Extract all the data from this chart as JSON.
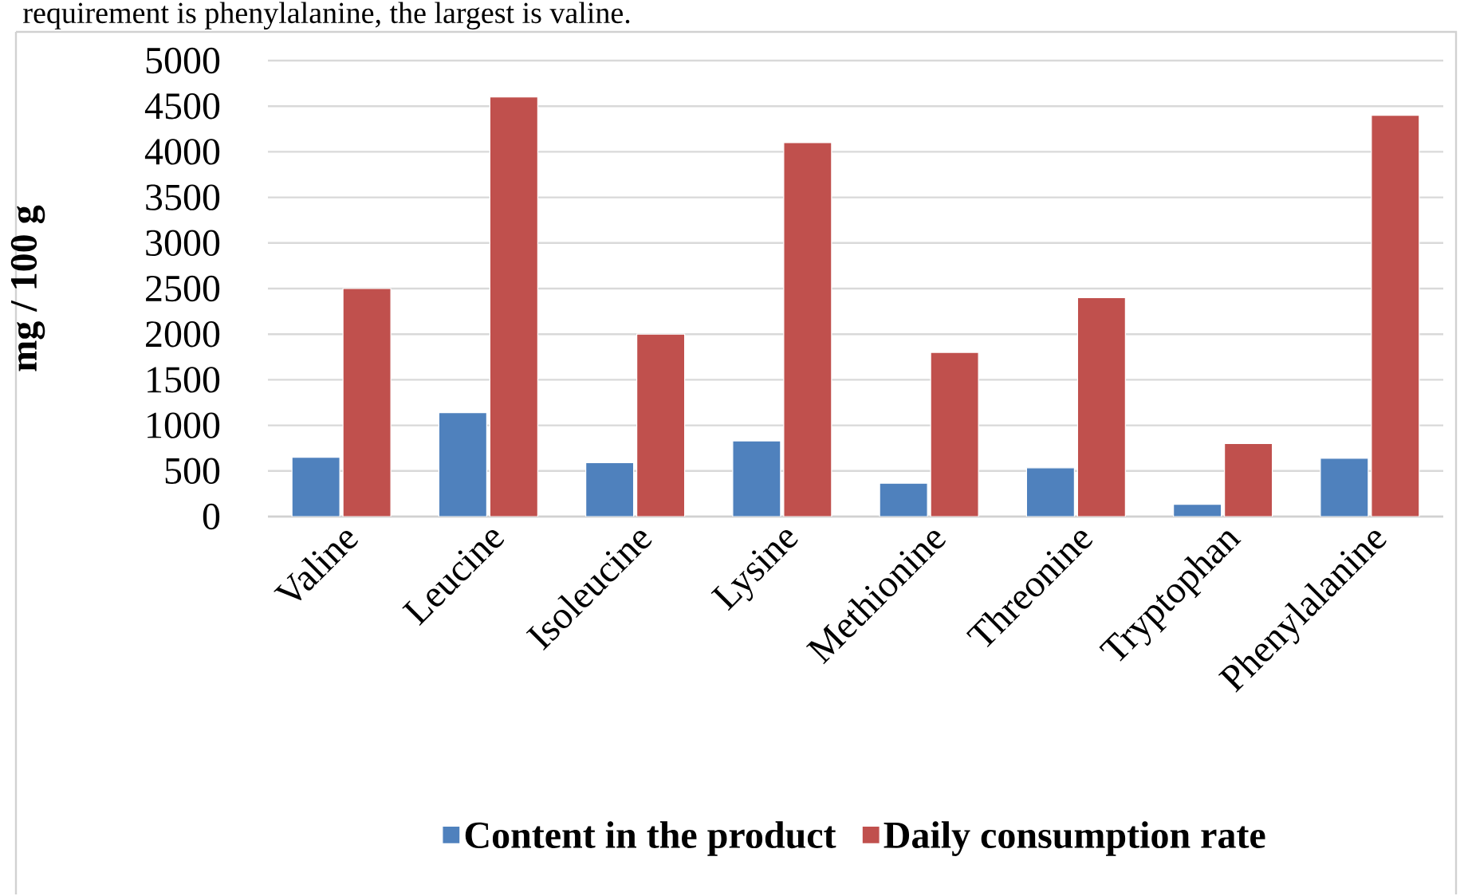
{
  "chart_data": {
    "type": "bar",
    "ylabel": "mg / 100 g",
    "annotations": [
      "requirement is phenylalanine, the largest is valine."
    ],
    "categories": [
      "Valine",
      "Leucine",
      "Isoleucine",
      "Lysine",
      "Methionine",
      "Threonine",
      "Tryptophan",
      "Phenylalanine"
    ],
    "series": [
      {
        "name": "Content in the product",
        "color": "#4f81bd",
        "values": [
          650,
          1140,
          590,
          830,
          365,
          535,
          135,
          640
        ]
      },
      {
        "name": "Daily consumption rate",
        "color": "#c0504d",
        "values": [
          2500,
          4600,
          2000,
          4100,
          1800,
          2400,
          800,
          4400
        ]
      }
    ],
    "ylim": [
      0,
      5000
    ],
    "yticks": [
      0,
      500,
      1000,
      1500,
      2000,
      2500,
      3000,
      3500,
      4000,
      4500,
      5000
    ],
    "grid": "y",
    "legend": "bottom"
  }
}
